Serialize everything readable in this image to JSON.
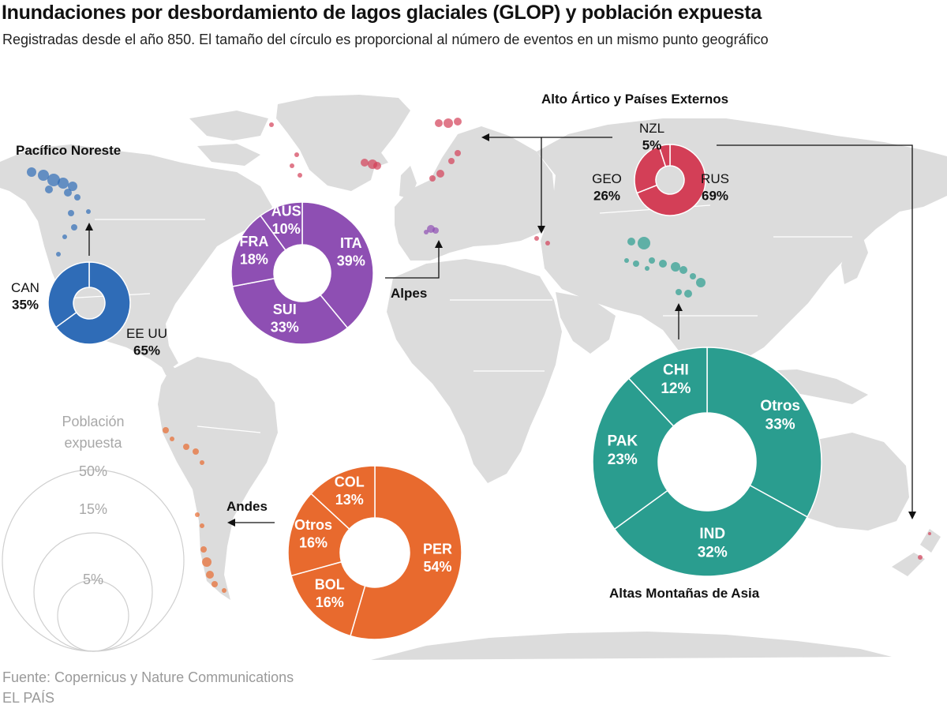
{
  "header": {
    "title": "Inundaciones por desbordamiento de lagos glaciales (GLOP) y población expuesta",
    "subtitle": "Registradas desde el año 850. El tamaño del círculo es proporcional al número de eventos en un mismo punto geográfico"
  },
  "footer": {
    "source": "Fuente: Copernicus y Nature Communications",
    "brand": "EL PAÍS"
  },
  "legend": {
    "title_line1": "Población",
    "title_line2": "expuesta",
    "sizes": [
      "50%",
      "15%",
      "5%"
    ]
  },
  "colors": {
    "land": "#dcdcdc",
    "pacifico": "#2f6cb7",
    "alpes": "#8e4fb3",
    "artico": "#d33f57",
    "asia": "#2a9d8f",
    "andes": "#e86a2e"
  },
  "chart_data": {
    "type": "pie",
    "title": "Inundaciones por desbordamiento de lagos glaciales (GLOP) y población expuesta",
    "regions": [
      {
        "name": "Pacífico Noreste",
        "color": "#2f6cb7",
        "slices": [
          {
            "label": "EE UU",
            "value": 65
          },
          {
            "label": "CAN",
            "value": 35
          }
        ]
      },
      {
        "name": "Alpes",
        "color": "#8e4fb3",
        "slices": [
          {
            "label": "ITA",
            "value": 39
          },
          {
            "label": "SUI",
            "value": 33
          },
          {
            "label": "FRA",
            "value": 18
          },
          {
            "label": "AUS",
            "value": 10
          }
        ]
      },
      {
        "name": "Alto Ártico y Países Externos",
        "color": "#d33f57",
        "slices": [
          {
            "label": "RUS",
            "value": 69
          },
          {
            "label": "GEO",
            "value": 26
          },
          {
            "label": "NZL",
            "value": 5
          }
        ]
      },
      {
        "name": "Altas Montañas de Asia",
        "color": "#2a9d8f",
        "slices": [
          {
            "label": "Otros",
            "value": 33
          },
          {
            "label": "IND",
            "value": 32
          },
          {
            "label": "PAK",
            "value": 23
          },
          {
            "label": "CHI",
            "value": 12
          }
        ]
      },
      {
        "name": "Andes",
        "color": "#e86a2e",
        "slices": [
          {
            "label": "PER",
            "value": 54
          },
          {
            "label": "BOL",
            "value": 16
          },
          {
            "label": "Otros",
            "value": 16
          },
          {
            "label": "COL",
            "value": 13
          }
        ]
      }
    ]
  }
}
